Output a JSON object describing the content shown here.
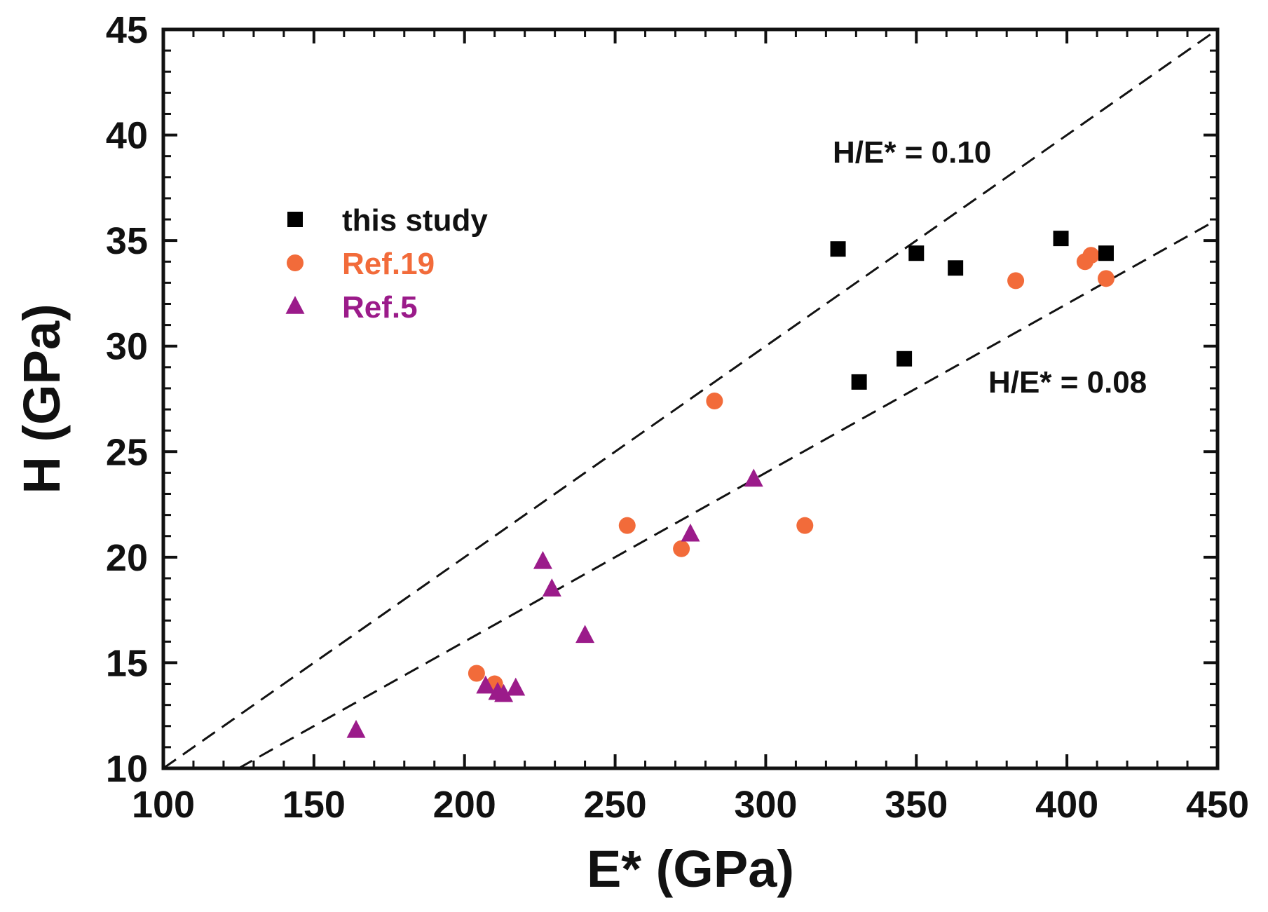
{
  "chart_data": {
    "type": "scatter",
    "title": "",
    "xlabel": "E* (GPa)",
    "ylabel": "H (GPa)",
    "xlim": [
      100,
      450
    ],
    "ylim": [
      10,
      45
    ],
    "xticks": [
      100,
      150,
      200,
      250,
      300,
      350,
      400,
      450
    ],
    "yticks": [
      10,
      15,
      20,
      25,
      30,
      35,
      40,
      45
    ],
    "grid": false,
    "legend_position": "upper-left",
    "series": [
      {
        "name": "this study",
        "marker": "square",
        "color": "#000000",
        "points": [
          [
            324,
            34.6
          ],
          [
            350,
            34.4
          ],
          [
            363,
            33.7
          ],
          [
            398,
            35.1
          ],
          [
            413,
            34.4
          ],
          [
            331,
            28.3
          ],
          [
            346,
            29.4
          ]
        ]
      },
      {
        "name": "Ref.19",
        "marker": "circle",
        "color": "#f26b3a",
        "points": [
          [
            204,
            14.5
          ],
          [
            210,
            14.0
          ],
          [
            254,
            21.5
          ],
          [
            272,
            20.4
          ],
          [
            283,
            27.4
          ],
          [
            313,
            21.5
          ],
          [
            383,
            33.1
          ],
          [
            406,
            34.0
          ],
          [
            408,
            34.3
          ],
          [
            413,
            33.2
          ]
        ]
      },
      {
        "name": "Ref.5",
        "marker": "triangle",
        "color": "#9b1b8a",
        "points": [
          [
            164,
            11.8
          ],
          [
            207,
            13.9
          ],
          [
            211,
            13.6
          ],
          [
            213,
            13.5
          ],
          [
            217,
            13.8
          ],
          [
            226,
            19.8
          ],
          [
            229,
            18.5
          ],
          [
            240,
            16.3
          ],
          [
            275,
            21.1
          ],
          [
            296,
            23.7
          ]
        ]
      }
    ],
    "reference_lines": [
      {
        "label": "H/E* = 0.10",
        "slope": 0.1,
        "x_range": [
          100,
          450
        ]
      },
      {
        "label": "H/E* = 0.08",
        "slope": 0.08,
        "x_range": [
          125,
          450
        ]
      }
    ]
  }
}
